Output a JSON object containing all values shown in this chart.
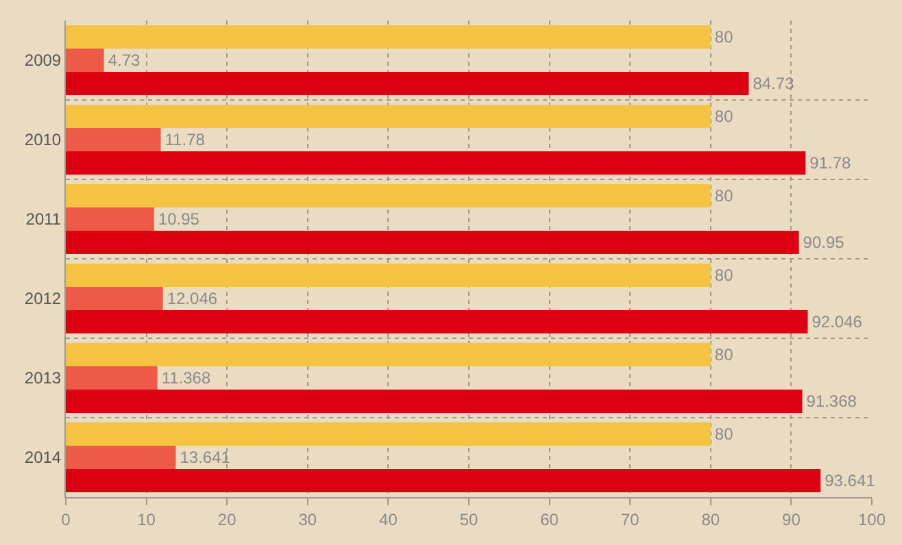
{
  "chart_data": {
    "type": "bar",
    "orientation": "horizontal",
    "categories": [
      "2009",
      "2010",
      "2011",
      "2012",
      "2013",
      "2014"
    ],
    "series": [
      {
        "color": "#f5c342",
        "values": [
          80,
          80,
          80,
          80,
          80,
          80
        ]
      },
      {
        "color": "#ee5a48",
        "values": [
          4.73,
          11.78,
          10.95,
          12.046,
          11.368,
          13.641
        ]
      },
      {
        "color": "#dd0010",
        "values": [
          84.73,
          91.78,
          90.95,
          92.046,
          91.368,
          93.641
        ]
      }
    ],
    "xlim": [
      0,
      100
    ],
    "xticks": [
      0,
      10,
      20,
      30,
      40,
      50,
      60,
      70,
      80,
      90,
      100
    ],
    "grid": true,
    "legend": false,
    "data_labels": true
  }
}
